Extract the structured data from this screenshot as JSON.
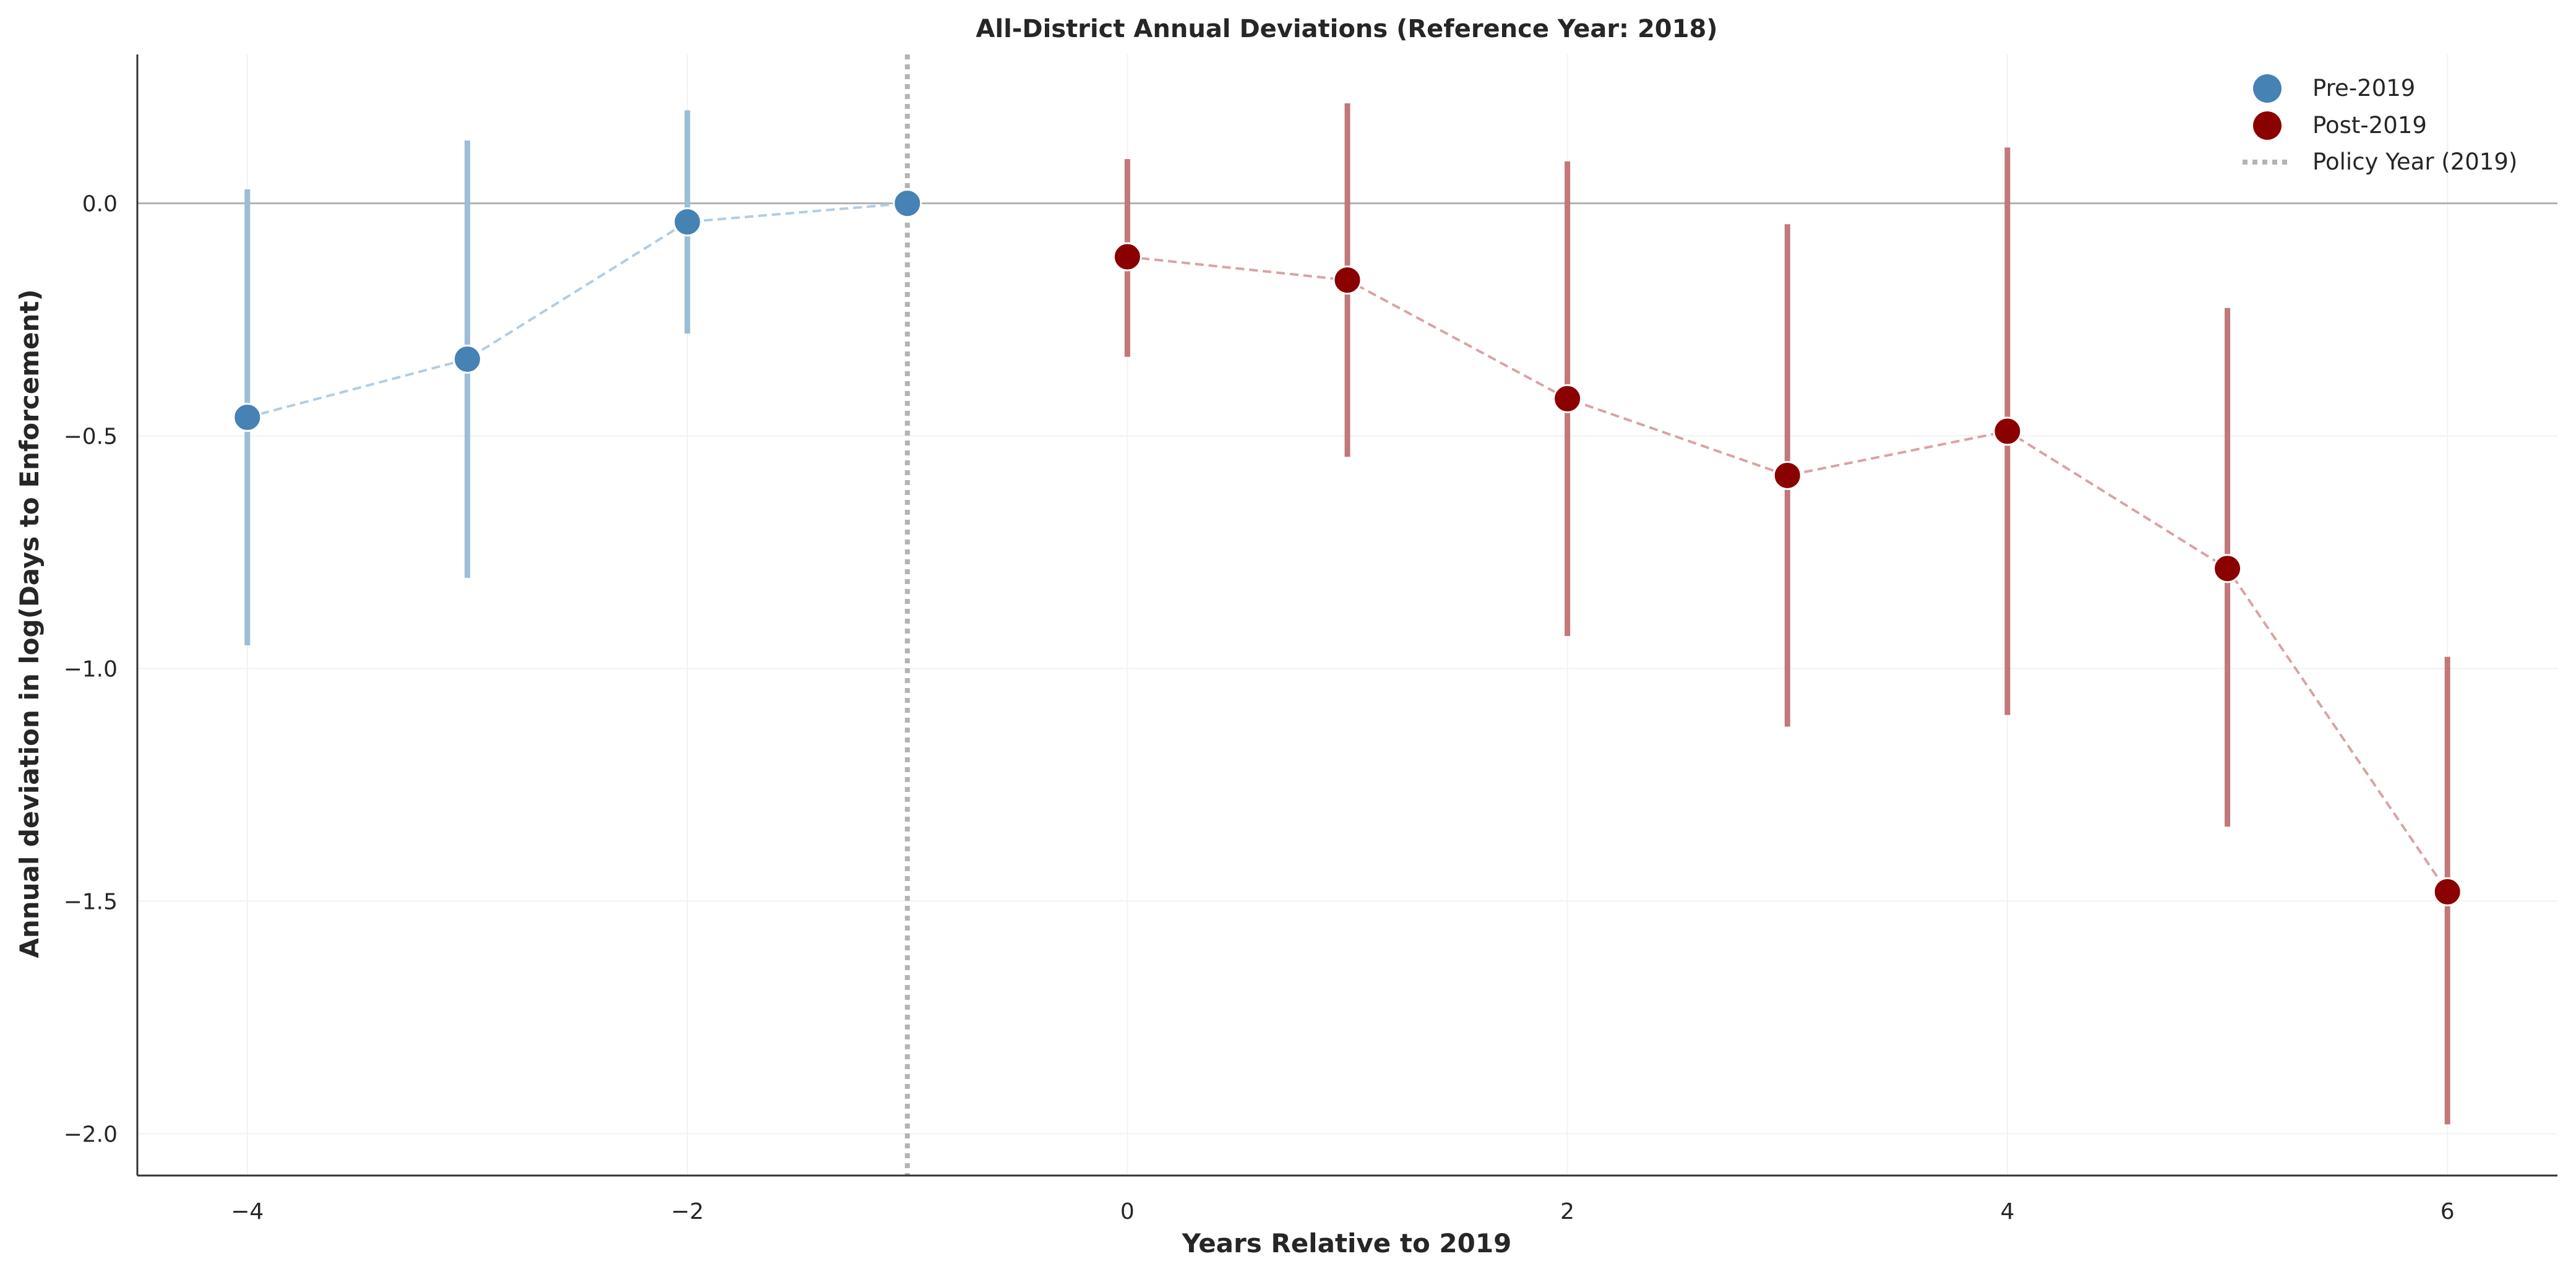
{
  "chart_data": {
    "type": "scatter",
    "title": "All-District Annual Deviations (Reference Year: 2018)",
    "xlabel": "Years Relative to 2019",
    "ylabel": "Annual deviation in log(Days to Enforcement)",
    "xlim": [
      -4.5,
      6.5
    ],
    "ylim": [
      -2.09,
      0.32
    ],
    "x_ticks": [
      -4,
      -2,
      0,
      2,
      4,
      6
    ],
    "x_tick_labels": [
      "−4",
      "−2",
      "0",
      "2",
      "4",
      "6"
    ],
    "y_ticks": [
      0.0,
      -0.5,
      -1.0,
      -1.5,
      -2.0
    ],
    "y_tick_labels": [
      "0.0",
      "−0.5",
      "−1.0",
      "−1.5",
      "−2.0"
    ],
    "grid": true,
    "legend_position": "top-right",
    "reference_line_y": 0,
    "policy_line": {
      "x": -1,
      "label": "Policy Year (2019)",
      "color": "#b3b3b3"
    },
    "series": [
      {
        "name": "Pre-2019",
        "color": "#4682b4",
        "line_color": "#b0cde3",
        "errorbar_color": "#9bbdd6",
        "x": [
          -4,
          -3,
          -2,
          -1
        ],
        "y": [
          -0.46,
          -0.335,
          -0.04,
          0.0
        ],
        "ci_low": [
          -0.95,
          -0.805,
          -0.28,
          0.0
        ],
        "ci_high": [
          0.03,
          0.135,
          0.2,
          0.0
        ]
      },
      {
        "name": "Post-2019",
        "color": "#8b0000",
        "line_color": "#d9a3a3",
        "errorbar_color": "#c07878",
        "x": [
          0,
          1,
          2,
          3,
          4,
          5,
          6
        ],
        "y": [
          -0.115,
          -0.165,
          -0.42,
          -0.585,
          -0.49,
          -0.785,
          -1.48
        ],
        "ci_low": [
          -0.33,
          -0.545,
          -0.93,
          -1.125,
          -1.1,
          -1.34,
          -1.98
        ],
        "ci_high": [
          0.095,
          0.215,
          0.09,
          -0.045,
          0.12,
          -0.225,
          -0.975
        ]
      }
    ]
  }
}
